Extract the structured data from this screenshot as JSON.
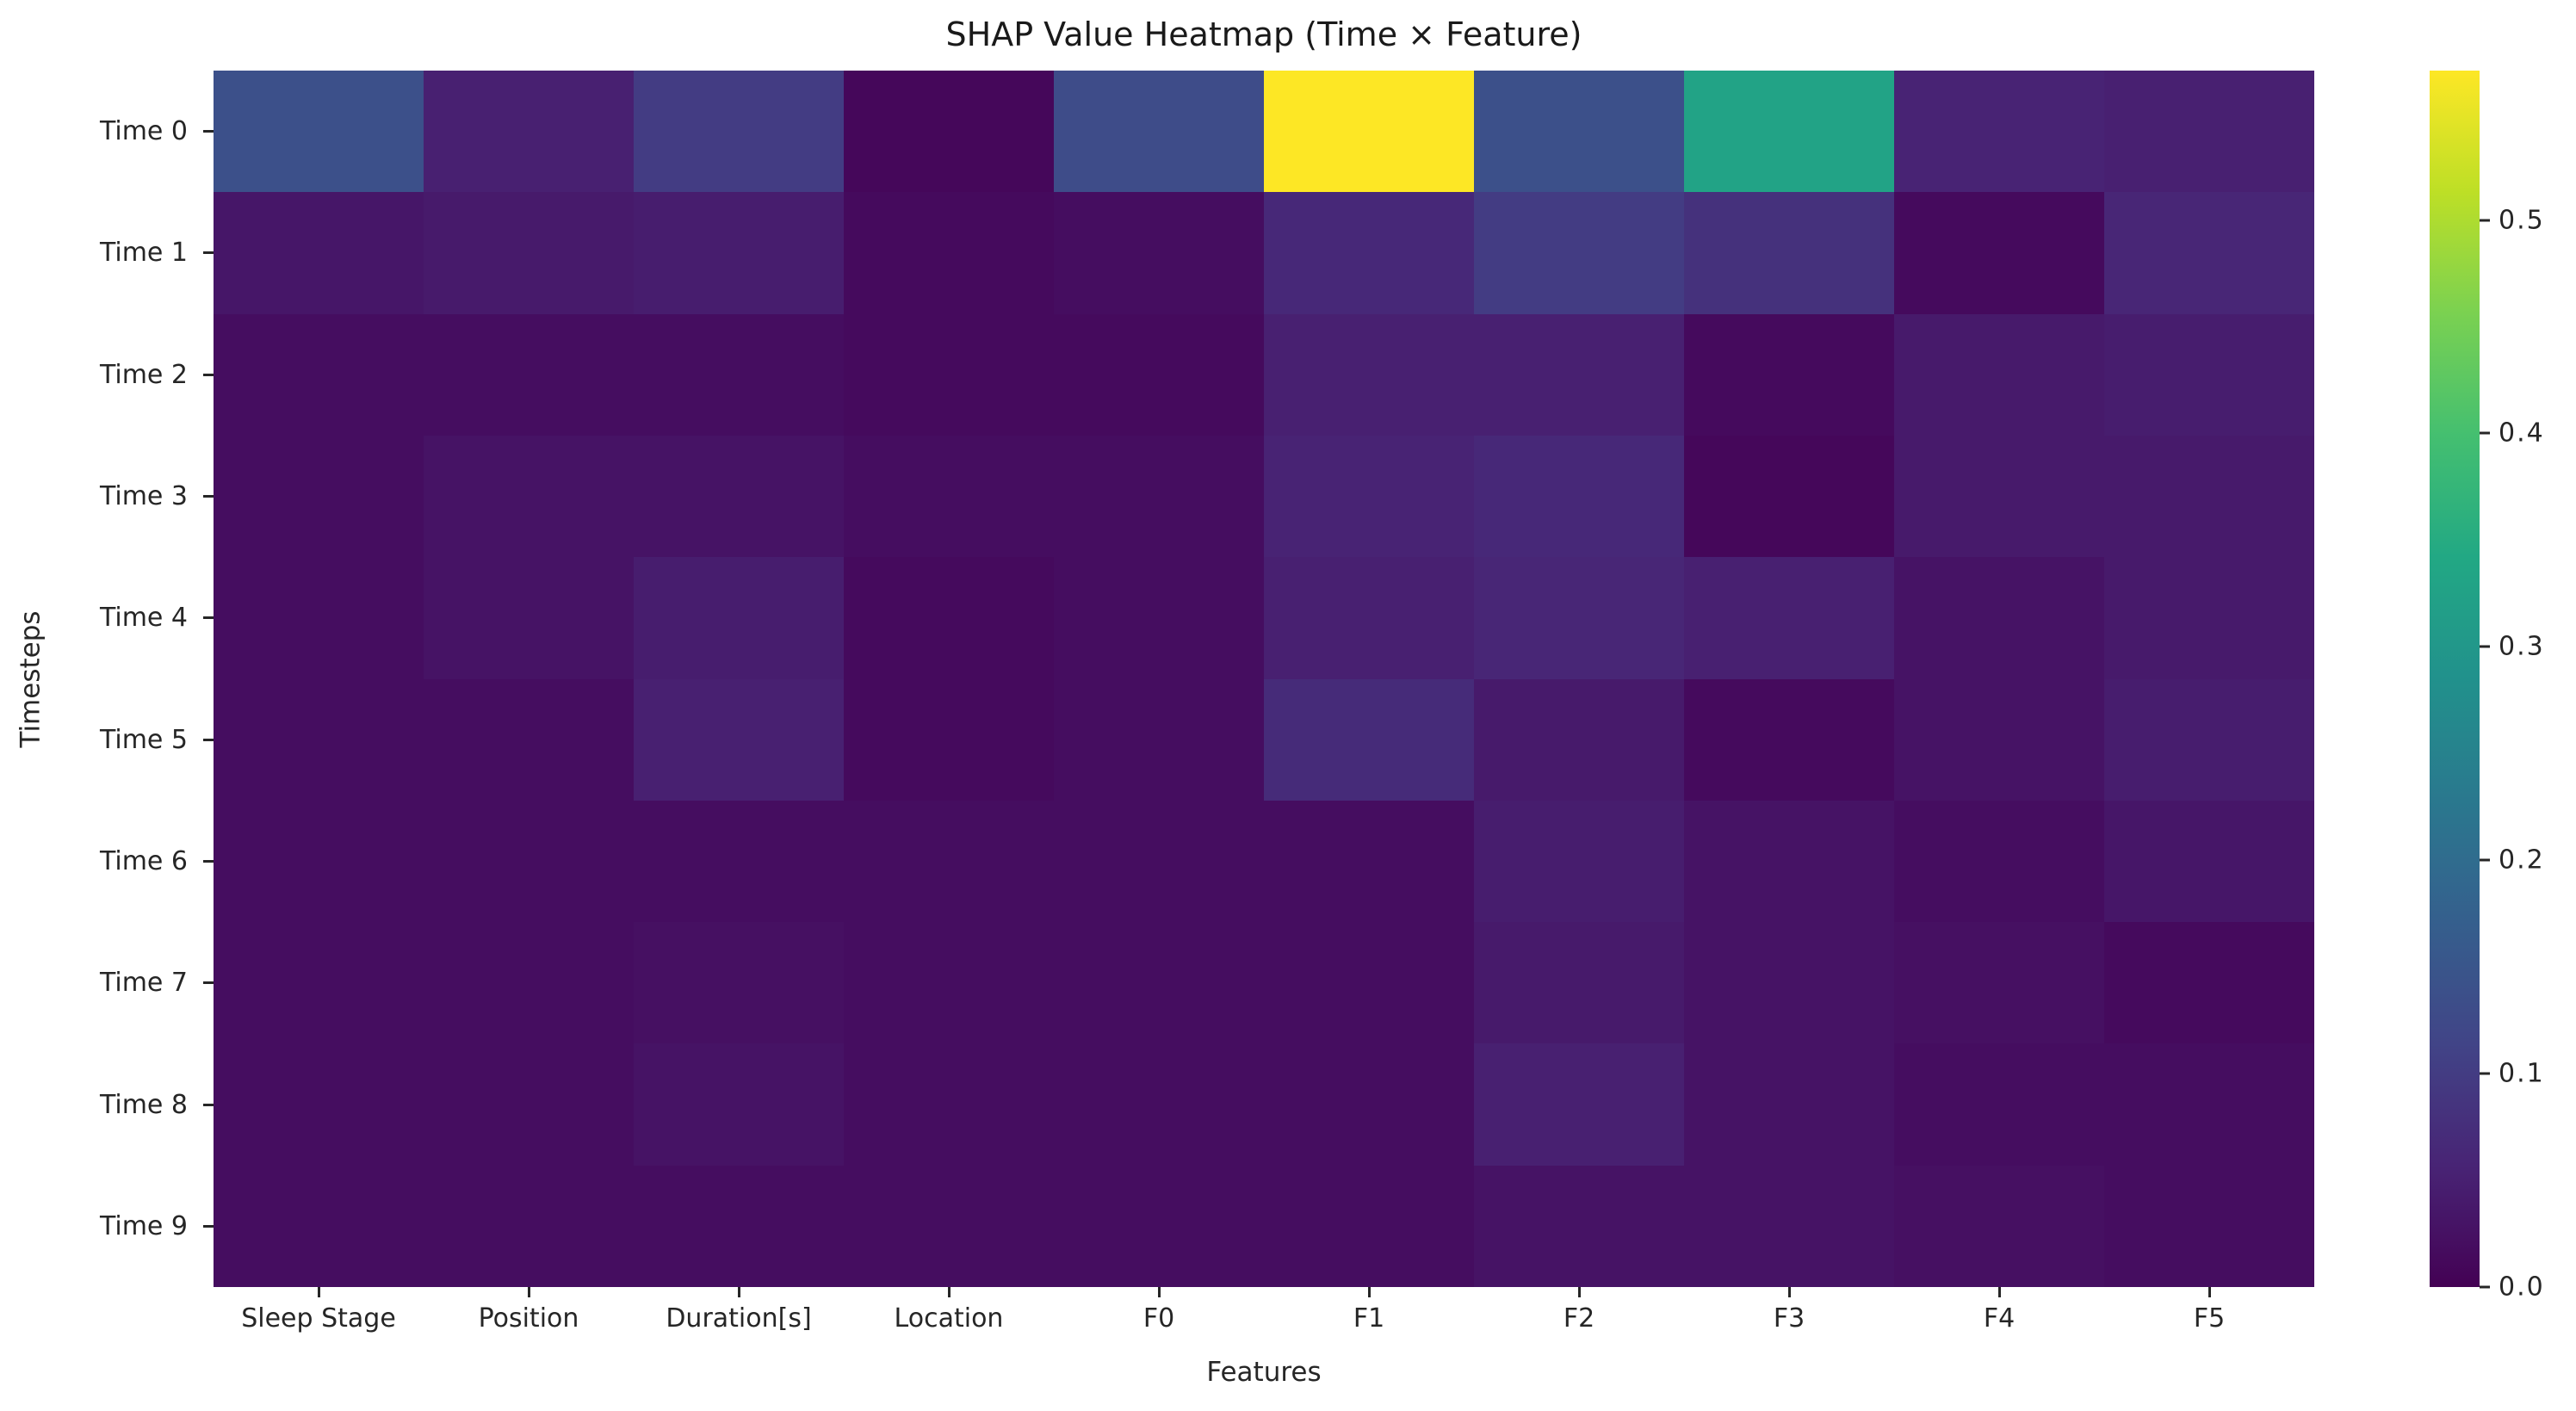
{
  "chart_data": {
    "type": "heatmap",
    "title": "SHAP Value Heatmap (Time × Feature)",
    "xlabel": "Features",
    "ylabel": "Timesteps",
    "x_categories": [
      "Sleep Stage",
      "Position",
      "Duration[s]",
      "Location",
      "F0",
      "F1",
      "F2",
      "F3",
      "F4",
      "F5"
    ],
    "y_categories": [
      "Time 0",
      "Time 1",
      "Time 2",
      "Time 3",
      "Time 4",
      "Time 5",
      "Time 6",
      "Time 7",
      "Time 8",
      "Time 9"
    ],
    "values": [
      [
        0.14,
        0.05,
        0.1,
        0.01,
        0.13,
        0.57,
        0.14,
        0.33,
        0.055,
        0.05
      ],
      [
        0.035,
        0.04,
        0.045,
        0.015,
        0.02,
        0.065,
        0.1,
        0.08,
        0.015,
        0.06
      ],
      [
        0.02,
        0.02,
        0.02,
        0.015,
        0.015,
        0.05,
        0.05,
        0.015,
        0.04,
        0.045
      ],
      [
        0.02,
        0.03,
        0.03,
        0.02,
        0.02,
        0.055,
        0.065,
        0.01,
        0.04,
        0.04
      ],
      [
        0.02,
        0.03,
        0.045,
        0.015,
        0.02,
        0.05,
        0.06,
        0.05,
        0.03,
        0.04
      ],
      [
        0.02,
        0.02,
        0.05,
        0.015,
        0.02,
        0.07,
        0.04,
        0.015,
        0.03,
        0.045
      ],
      [
        0.02,
        0.02,
        0.02,
        0.02,
        0.02,
        0.02,
        0.045,
        0.03,
        0.02,
        0.035
      ],
      [
        0.02,
        0.02,
        0.025,
        0.02,
        0.02,
        0.02,
        0.04,
        0.03,
        0.025,
        0.015
      ],
      [
        0.02,
        0.02,
        0.03,
        0.02,
        0.02,
        0.02,
        0.05,
        0.03,
        0.02,
        0.02
      ],
      [
        0.02,
        0.02,
        0.02,
        0.02,
        0.02,
        0.02,
        0.03,
        0.03,
        0.025,
        0.02
      ]
    ],
    "vmin": 0.0,
    "vmax": 0.57,
    "colorbar_ticks": [
      "0.0",
      "0.1",
      "0.2",
      "0.3",
      "0.4",
      "0.5"
    ],
    "colorbar_tick_values": [
      0.0,
      0.1,
      0.2,
      0.3,
      0.4,
      0.5
    ],
    "colormap": "viridis",
    "colormap_stops": [
      "#440154",
      "#482475",
      "#414487",
      "#355f8d",
      "#2a788e",
      "#21918c",
      "#22a884",
      "#44bf70",
      "#7ad151",
      "#bddf26",
      "#fde725"
    ],
    "grid": false,
    "legend_position": "colorbar-right"
  },
  "text_color": "#262626",
  "background_color": "#ffffff"
}
